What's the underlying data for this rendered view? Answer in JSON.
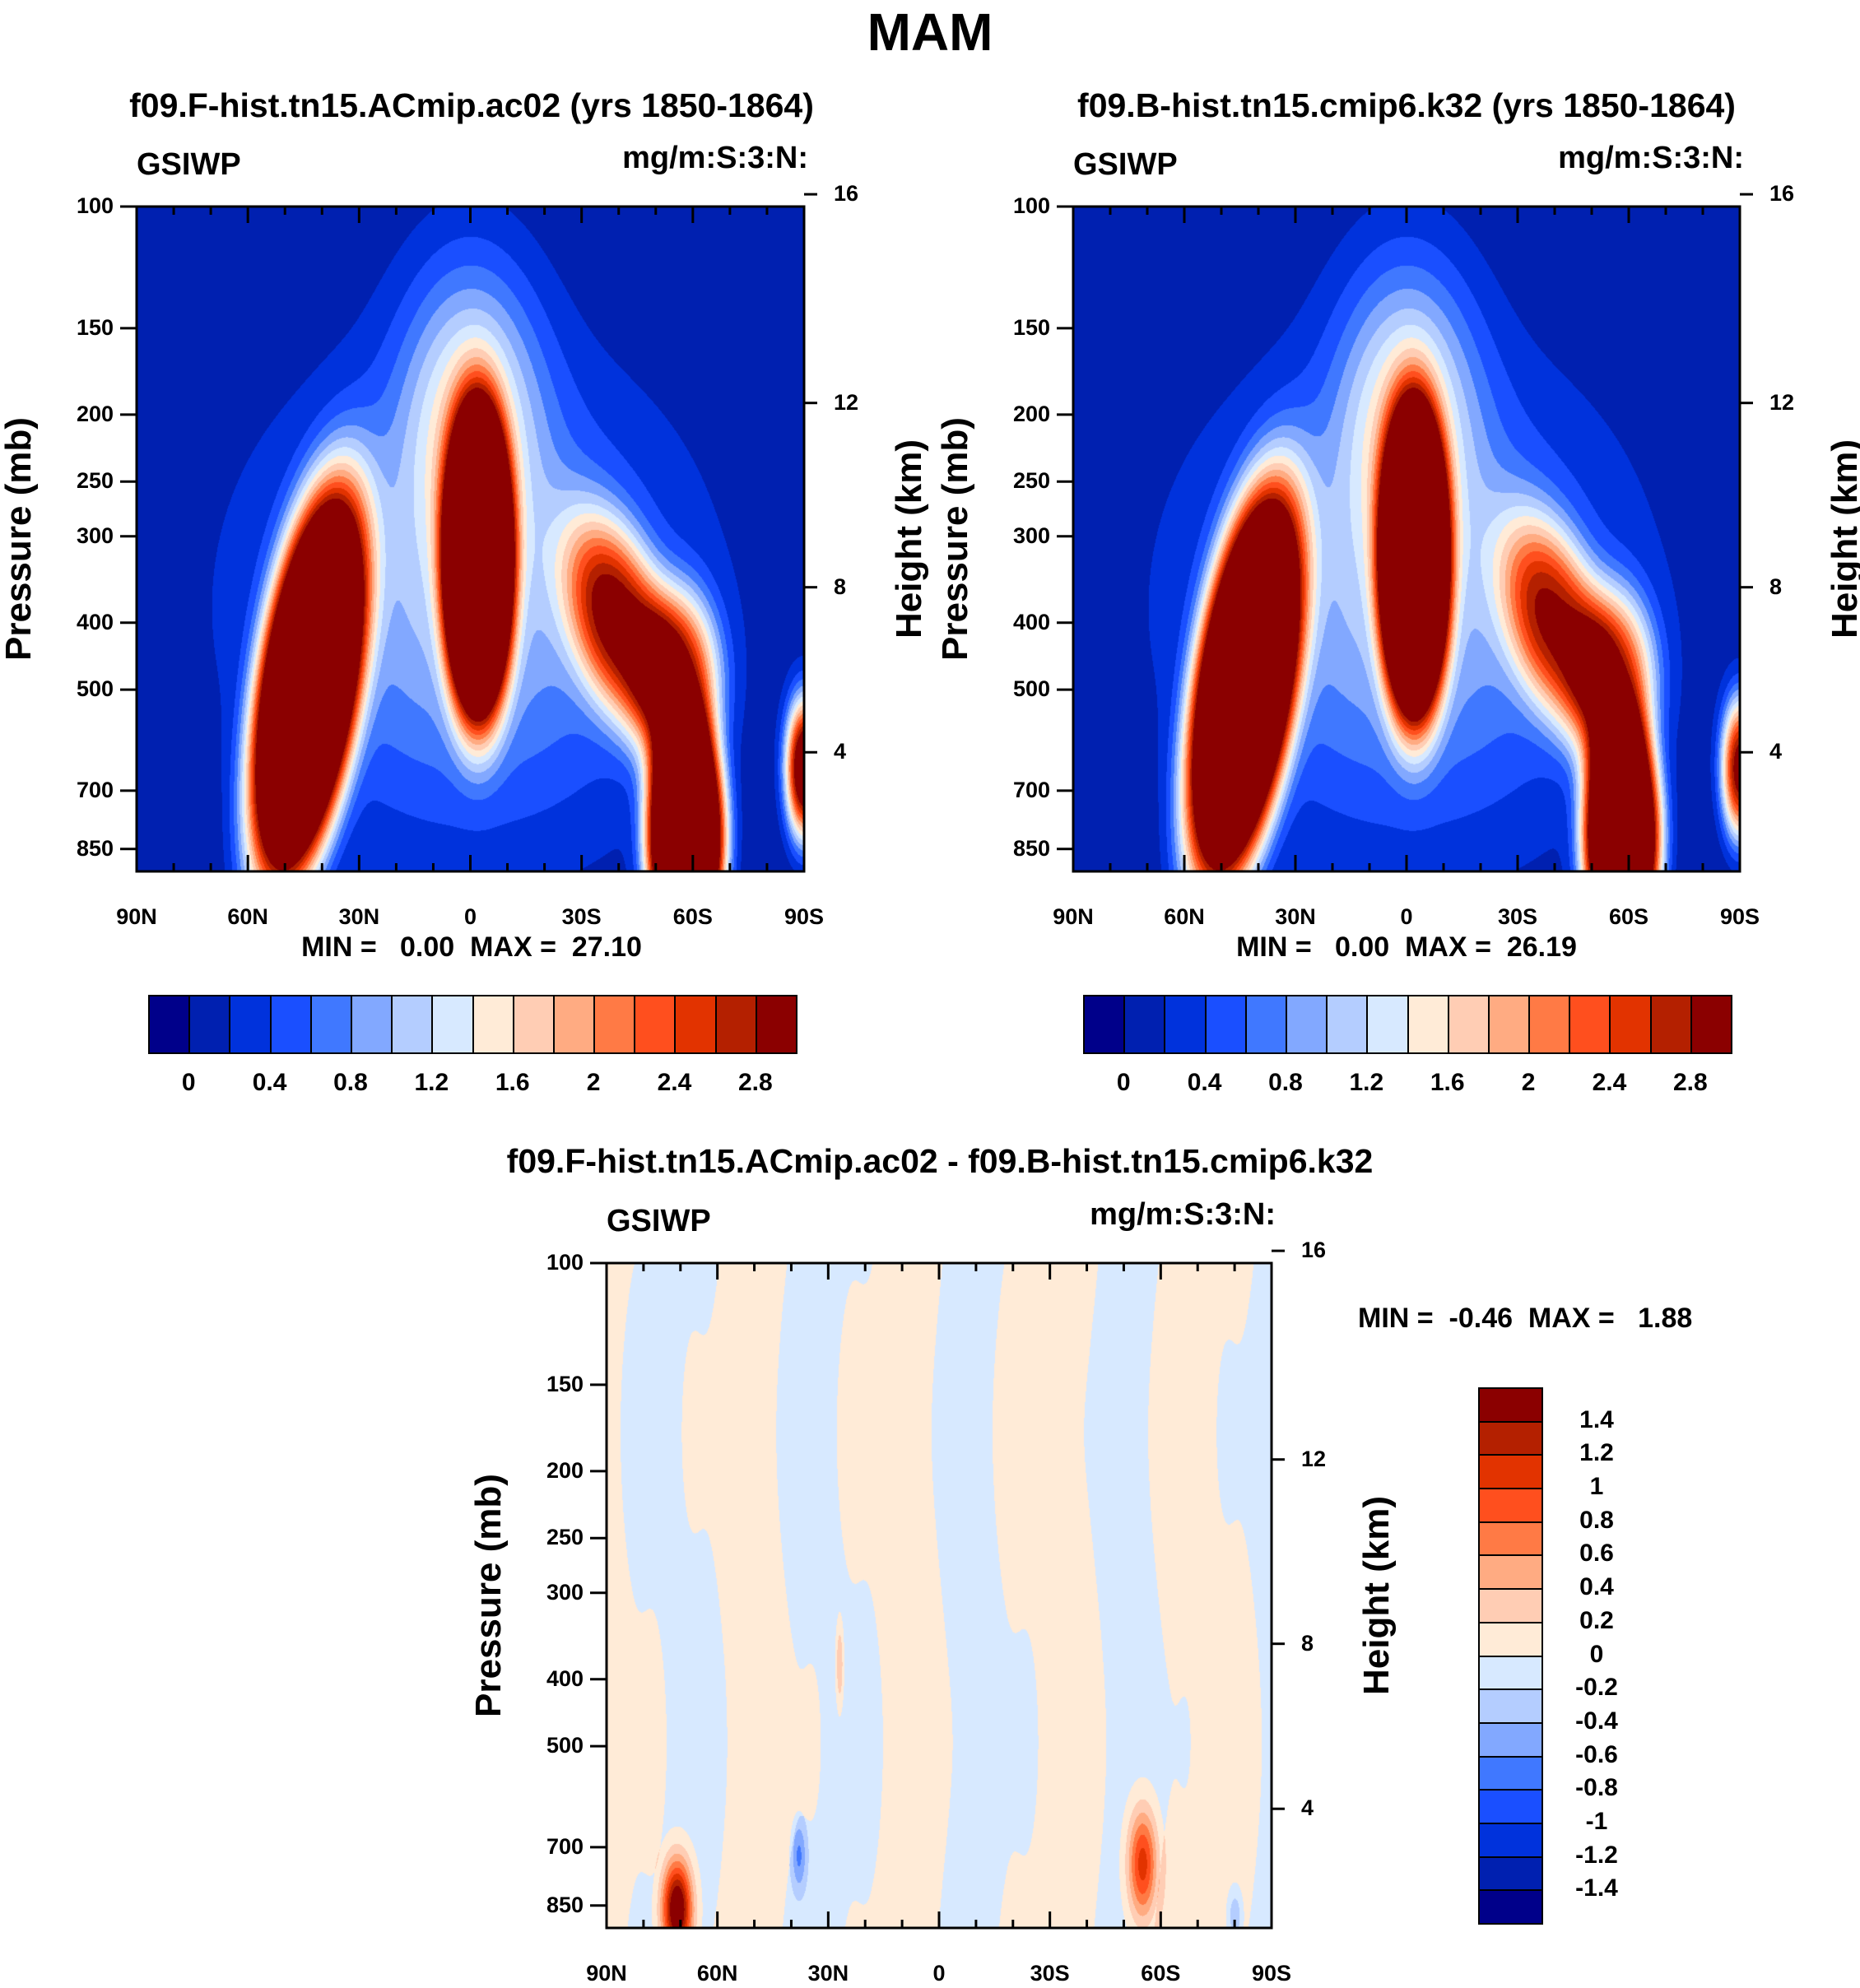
{
  "title": "MAM",
  "panels": [
    {
      "title": "f09.F-hist.tn15.ACmip.ac02 (yrs 1850-1864)",
      "left_label": "GSIWP",
      "right_label": "mg/m:S:3:N:",
      "stats": "MIN =   0.00  MAX =  27.10"
    },
    {
      "title": "f09.B-hist.tn15.cmip6.k32 (yrs 1850-1864)",
      "left_label": "GSIWP",
      "right_label": "mg/m:S:3:N:",
      "stats": "MIN =   0.00  MAX =  26.19"
    },
    {
      "title": "f09.F-hist.tn15.ACmip.ac02 - f09.B-hist.tn15.cmip6.k32",
      "left_label": "GSIWP",
      "right_label": "mg/m:S:3:N:",
      "stats": "MIN =  -0.46  MAX =   1.88"
    }
  ],
  "axes": {
    "ylabel": "Pressure (mb)",
    "y2label": "Height (km)",
    "xticks": [
      "90N",
      "60N",
      "30N",
      "0",
      "30S",
      "60S",
      "90S"
    ],
    "yticks": [
      "100",
      "150",
      "200",
      "250",
      "300",
      "400",
      "500",
      "700",
      "850"
    ],
    "y2ticks": [
      "16",
      "12",
      "8",
      "4"
    ]
  },
  "colorbars": {
    "abs_labels": [
      "0",
      "0.4",
      "0.8",
      "1.2",
      "1.6",
      "2",
      "2.4",
      "2.8"
    ],
    "diff_labels": [
      "1.4",
      "1.2",
      "1",
      "0.8",
      "0.6",
      "0.4",
      "0.2",
      "0",
      "-0.2",
      "-0.4",
      "-0.6",
      "-0.8",
      "-1",
      "-1.2",
      "-1.4"
    ]
  },
  "chart_data": [
    {
      "type": "heatmap",
      "title": "f09.F-hist.tn15.ACmip.ac02 (yrs 1850-1864)",
      "variable": "GSIWP",
      "units": "mg/m:S:3:N:",
      "xlabel": "",
      "ylabel": "Pressure (mb)",
      "y2label": "Height (km)",
      "xlim": [
        90,
        -90
      ],
      "ylim": [
        916,
        100
      ],
      "xtick_values": [
        90,
        60,
        30,
        0,
        -30,
        -60,
        -90
      ],
      "ytick_values": [
        100,
        150,
        200,
        250,
        300,
        400,
        500,
        700,
        850
      ],
      "y2tick_values": [
        16,
        12,
        8,
        4
      ],
      "levels": [
        0,
        0.2,
        0.4,
        0.6,
        0.8,
        1.0,
        1.2,
        1.4,
        1.6,
        1.8,
        2.0,
        2.2,
        2.4,
        2.6,
        2.8
      ],
      "min": 0.0,
      "max": 27.1,
      "features": [
        {
          "lat": 44,
          "p": 500,
          "sx": 13,
          "sy": 0.28,
          "amp": 6,
          "tilt": 26,
          "pow": 1.6
        },
        {
          "lat": -2,
          "p": 330,
          "sx": 9,
          "sy": 0.22,
          "amp": 6,
          "tilt": 0,
          "pow": 1.6
        },
        {
          "lat": -40,
          "p": 400,
          "sx": 13,
          "sy": 0.15,
          "amp": 2.5,
          "tilt": -40,
          "pow": 1.3
        },
        {
          "lat": -56,
          "p": 490,
          "sx": 11,
          "sy": 0.13,
          "amp": 2.4,
          "tilt": 0,
          "pow": 1.3
        },
        {
          "lat": -58,
          "p": 820,
          "sx": 10,
          "sy": 0.17,
          "amp": 6,
          "tilt": 0,
          "pow": 1.6
        },
        {
          "lat": -90,
          "p": 650,
          "sx": 5,
          "sy": 0.1,
          "amp": 3.5,
          "tilt": 0,
          "pow": 1.2
        },
        {
          "lat": 0,
          "p": 380,
          "sx": 55,
          "sy": 0.33,
          "amp": 1.0,
          "tilt": 0,
          "pow": 1
        },
        {
          "lat": 0,
          "p": 200,
          "sx": 18,
          "sy": 0.22,
          "amp": 1.3,
          "tilt": 0,
          "pow": 1
        }
      ]
    },
    {
      "type": "heatmap",
      "title": "f09.B-hist.tn15.cmip6.k32 (yrs 1850-1864)",
      "variable": "GSIWP",
      "units": "mg/m:S:3:N:",
      "xlabel": "",
      "ylabel": "Pressure (mb)",
      "y2label": "Height (km)",
      "xlim": [
        90,
        -90
      ],
      "ylim": [
        916,
        100
      ],
      "levels": [
        0,
        0.2,
        0.4,
        0.6,
        0.8,
        1.0,
        1.2,
        1.4,
        1.6,
        1.8,
        2.0,
        2.2,
        2.4,
        2.6,
        2.8
      ],
      "min": 0.0,
      "max": 26.19,
      "features": [
        {
          "lat": 44,
          "p": 500,
          "sx": 13,
          "sy": 0.28,
          "amp": 6,
          "tilt": 26,
          "pow": 1.6
        },
        {
          "lat": -2,
          "p": 330,
          "sx": 9,
          "sy": 0.22,
          "amp": 6,
          "tilt": 0,
          "pow": 1.6
        },
        {
          "lat": -40,
          "p": 400,
          "sx": 13,
          "sy": 0.15,
          "amp": 2.3,
          "tilt": -40,
          "pow": 1.3
        },
        {
          "lat": -56,
          "p": 490,
          "sx": 11,
          "sy": 0.13,
          "amp": 2.2,
          "tilt": 0,
          "pow": 1.3
        },
        {
          "lat": -58,
          "p": 820,
          "sx": 10,
          "sy": 0.17,
          "amp": 5.5,
          "tilt": 0,
          "pow": 1.6
        },
        {
          "lat": -90,
          "p": 650,
          "sx": 5,
          "sy": 0.1,
          "amp": 3.0,
          "tilt": 0,
          "pow": 1.2
        },
        {
          "lat": 0,
          "p": 380,
          "sx": 55,
          "sy": 0.33,
          "amp": 1.0,
          "tilt": 0,
          "pow": 1
        },
        {
          "lat": 0,
          "p": 200,
          "sx": 18,
          "sy": 0.22,
          "amp": 1.3,
          "tilt": 0,
          "pow": 1
        }
      ]
    },
    {
      "type": "heatmap",
      "title": "f09.F-hist.tn15.ACmip.ac02 - f09.B-hist.tn15.cmip6.k32",
      "variable": "GSIWP",
      "units": "mg/m:S:3:N:",
      "xlabel": "",
      "ylabel": "Pressure (mb)",
      "y2label": "Height (km)",
      "xlim": [
        90,
        -90
      ],
      "ylim": [
        916,
        100
      ],
      "levels": [
        -1.4,
        -1.2,
        -1.0,
        -0.8,
        -0.6,
        -0.4,
        -0.2,
        0,
        0.2,
        0.4,
        0.6,
        0.8,
        1.0,
        1.2,
        1.4
      ],
      "min": -0.46,
      "max": 1.88,
      "features": [
        {
          "lat": 71,
          "p": 860,
          "sx": 4,
          "sy": 0.07,
          "amp": 1.9,
          "tilt": 0,
          "pow": 1
        },
        {
          "lat": -55,
          "p": 740,
          "sx": 4,
          "sy": 0.08,
          "amp": 1.2,
          "tilt": 0,
          "pow": 1
        },
        {
          "lat": 38,
          "p": 720,
          "sx": 2,
          "sy": 0.05,
          "amp": -0.55,
          "tilt": 0,
          "pow": 1
        },
        {
          "lat": 27,
          "p": 380,
          "sx": 1,
          "sy": 0.06,
          "amp": 0.5,
          "tilt": 0,
          "pow": 1
        },
        {
          "lat": -80,
          "p": 880,
          "sx": 2,
          "sy": 0.04,
          "amp": -0.45,
          "tilt": 0,
          "pow": 1
        }
      ]
    }
  ],
  "colors": [
    "#00008A",
    "#0020B0",
    "#0032DC",
    "#1A4FFF",
    "#4078FF",
    "#82A8FF",
    "#B4CDFF",
    "#D7E9FF",
    "#FFEBD7",
    "#FFCDB4",
    "#FFAB82",
    "#FF7A45",
    "#FF4F1E",
    "#E23300",
    "#B42000",
    "#8B0000"
  ]
}
